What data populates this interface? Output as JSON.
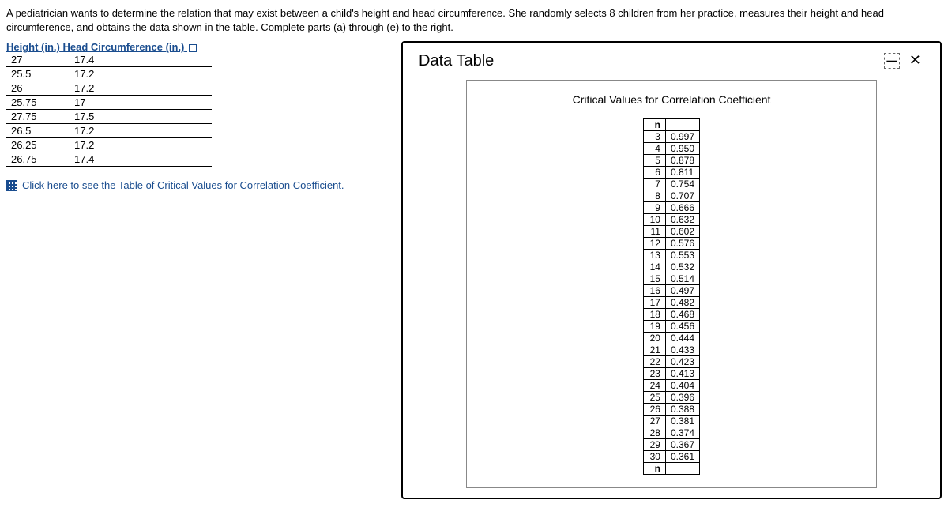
{
  "intro": "A pediatrician wants to determine the relation that may exist between a child's height and head circumference. She randomly selects 8 children from her practice, measures their height and head circumference, and obtains the data shown in the table. Complete parts (a) through (e) to the right.",
  "dataTable": {
    "header1": "Height (in.)",
    "header2": "Head Circumference (in.)",
    "rows": [
      {
        "h": "27",
        "c": "17.4"
      },
      {
        "h": "25.5",
        "c": "17.2"
      },
      {
        "h": "26",
        "c": "17.2"
      },
      {
        "h": "25.75",
        "c": "17"
      },
      {
        "h": "27.75",
        "c": "17.5"
      },
      {
        "h": "26.5",
        "c": "17.2"
      },
      {
        "h": "26.25",
        "c": "17.2"
      },
      {
        "h": "26.75",
        "c": "17.4"
      }
    ]
  },
  "linkText": "Click here to see the Table of Critical Values for Correlation Coefficient.",
  "modal": {
    "title": "Data Table",
    "minimizeLabel": "—",
    "closeLabel": "✕"
  },
  "critical": {
    "title": "Critical Values for Correlation Coefficient",
    "headerN": "n",
    "footerN": "n",
    "rows": [
      {
        "n": "3",
        "v": "0.997"
      },
      {
        "n": "4",
        "v": "0.950"
      },
      {
        "n": "5",
        "v": "0.878"
      },
      {
        "n": "6",
        "v": "0.811"
      },
      {
        "n": "7",
        "v": "0.754"
      },
      {
        "n": "8",
        "v": "0.707"
      },
      {
        "n": "9",
        "v": "0.666"
      },
      {
        "n": "10",
        "v": "0.632"
      },
      {
        "n": "11",
        "v": "0.602"
      },
      {
        "n": "12",
        "v": "0.576"
      },
      {
        "n": "13",
        "v": "0.553"
      },
      {
        "n": "14",
        "v": "0.532"
      },
      {
        "n": "15",
        "v": "0.514"
      },
      {
        "n": "16",
        "v": "0.497"
      },
      {
        "n": "17",
        "v": "0.482"
      },
      {
        "n": "18",
        "v": "0.468"
      },
      {
        "n": "19",
        "v": "0.456"
      },
      {
        "n": "20",
        "v": "0.444"
      },
      {
        "n": "21",
        "v": "0.433"
      },
      {
        "n": "22",
        "v": "0.423"
      },
      {
        "n": "23",
        "v": "0.413"
      },
      {
        "n": "24",
        "v": "0.404"
      },
      {
        "n": "25",
        "v": "0.396"
      },
      {
        "n": "26",
        "v": "0.388"
      },
      {
        "n": "27",
        "v": "0.381"
      },
      {
        "n": "28",
        "v": "0.374"
      },
      {
        "n": "29",
        "v": "0.367"
      },
      {
        "n": "30",
        "v": "0.361"
      }
    ]
  },
  "colors": {
    "link": "#1a4d8f",
    "border": "#000000",
    "modalBorder": "#888888"
  }
}
